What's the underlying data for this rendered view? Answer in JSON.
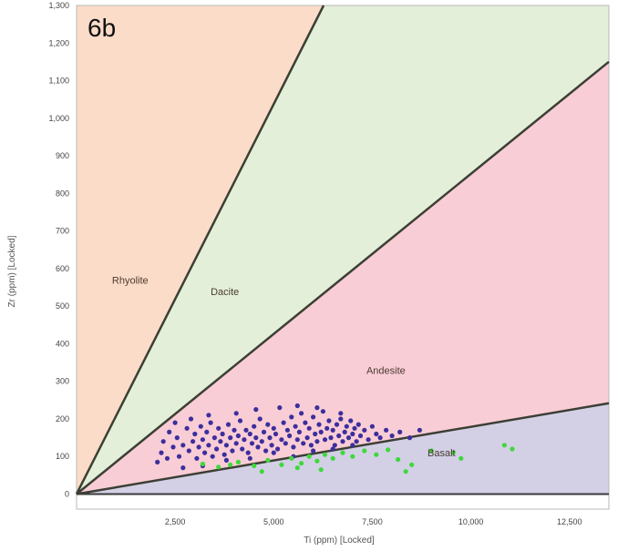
{
  "chart_data": {
    "type": "scatter",
    "panel_label": "6b",
    "xlabel": "Ti (ppm) [Locked]",
    "ylabel": "Zr (ppm) [Locked]",
    "xlim": [
      0,
      13500
    ],
    "ylim": [
      -40,
      1300
    ],
    "xticks": [
      2500,
      5000,
      7500,
      10000,
      12500
    ],
    "xtick_labels": [
      "2,500",
      "5,000",
      "7,500",
      "10,000",
      "12,500"
    ],
    "yticks": [
      0,
      100,
      200,
      300,
      400,
      500,
      600,
      700,
      800,
      900,
      1000,
      1100,
      1200,
      1300
    ],
    "ytick_labels": [
      "0",
      "100",
      "200",
      "300",
      "400",
      "500",
      "600",
      "700",
      "800",
      "900",
      "1,000",
      "1,100",
      "1,200",
      "1,300"
    ],
    "boundaries": [
      {
        "name": "rhyolite-dacite",
        "slope": 0.2075
      },
      {
        "name": "dacite-andesite",
        "slope": 0.0852
      },
      {
        "name": "andesite-basalt",
        "slope": 0.0179
      }
    ],
    "regions": [
      {
        "label": "Rhyolite",
        "color": "#fbdcc8",
        "label_at": [
          900,
          560
        ]
      },
      {
        "label": "Dacite",
        "color": "#e3efd9",
        "label_at": [
          3400,
          530
        ]
      },
      {
        "label": "Andesite",
        "color": "#f9cdd6",
        "label_at": [
          7350,
          320
        ]
      },
      {
        "label": "Basalt",
        "color": "#d3d0e6",
        "label_at": [
          8900,
          100
        ]
      }
    ],
    "series": [
      {
        "color": "#3c2f9c",
        "points": [
          [
            2050,
            85
          ],
          [
            2150,
            110
          ],
          [
            2200,
            140
          ],
          [
            2300,
            95
          ],
          [
            2350,
            165
          ],
          [
            2450,
            125
          ],
          [
            2550,
            150
          ],
          [
            2600,
            100
          ],
          [
            2700,
            130
          ],
          [
            2800,
            175
          ],
          [
            2850,
            115
          ],
          [
            2950,
            140
          ],
          [
            3000,
            160
          ],
          [
            3050,
            95
          ],
          [
            3100,
            125
          ],
          [
            3150,
            180
          ],
          [
            3200,
            145
          ],
          [
            3250,
            110
          ],
          [
            3300,
            165
          ],
          [
            3350,
            130
          ],
          [
            3400,
            190
          ],
          [
            3450,
            100
          ],
          [
            3500,
            150
          ],
          [
            3550,
            120
          ],
          [
            3600,
            175
          ],
          [
            3650,
            140
          ],
          [
            3700,
            160
          ],
          [
            3750,
            105
          ],
          [
            3800,
            130
          ],
          [
            3850,
            185
          ],
          [
            3900,
            150
          ],
          [
            3950,
            115
          ],
          [
            4000,
            170
          ],
          [
            4050,
            135
          ],
          [
            4100,
            155
          ],
          [
            4150,
            195
          ],
          [
            4200,
            120
          ],
          [
            4250,
            145
          ],
          [
            4300,
            170
          ],
          [
            4350,
            110
          ],
          [
            4400,
            160
          ],
          [
            4450,
            135
          ],
          [
            4500,
            180
          ],
          [
            4550,
            150
          ],
          [
            4600,
            125
          ],
          [
            4650,
            200
          ],
          [
            4700,
            140
          ],
          [
            4750,
            165
          ],
          [
            4800,
            115
          ],
          [
            4850,
            185
          ],
          [
            4900,
            150
          ],
          [
            4950,
            130
          ],
          [
            5000,
            175
          ],
          [
            5050,
            160
          ],
          [
            5100,
            120
          ],
          [
            5150,
            230
          ],
          [
            5200,
            145
          ],
          [
            5250,
            190
          ],
          [
            5300,
            135
          ],
          [
            5350,
            170
          ],
          [
            5400,
            155
          ],
          [
            5450,
            205
          ],
          [
            5500,
            125
          ],
          [
            5550,
            180
          ],
          [
            5600,
            145
          ],
          [
            5650,
            165
          ],
          [
            5700,
            215
          ],
          [
            5750,
            135
          ],
          [
            5800,
            190
          ],
          [
            5850,
            150
          ],
          [
            5900,
            175
          ],
          [
            5950,
            130
          ],
          [
            6000,
            205
          ],
          [
            6050,
            160
          ],
          [
            6100,
            140
          ],
          [
            6150,
            185
          ],
          [
            6200,
            165
          ],
          [
            6250,
            220
          ],
          [
            6300,
            145
          ],
          [
            6350,
            175
          ],
          [
            6400,
            195
          ],
          [
            6450,
            150
          ],
          [
            6500,
            170
          ],
          [
            6550,
            130
          ],
          [
            6600,
            185
          ],
          [
            6650,
            155
          ],
          [
            6700,
            200
          ],
          [
            6750,
            140
          ],
          [
            6800,
            165
          ],
          [
            6850,
            180
          ],
          [
            6900,
            150
          ],
          [
            6950,
            195
          ],
          [
            7000,
            160
          ],
          [
            7050,
            175
          ],
          [
            7100,
            140
          ],
          [
            7150,
            185
          ],
          [
            7200,
            155
          ],
          [
            7300,
            170
          ],
          [
            7400,
            145
          ],
          [
            7500,
            180
          ],
          [
            7600,
            160
          ],
          [
            7700,
            150
          ],
          [
            7850,
            170
          ],
          [
            8000,
            155
          ],
          [
            8200,
            165
          ],
          [
            8450,
            150
          ],
          [
            8700,
            170
          ],
          [
            2500,
            190
          ],
          [
            2900,
            200
          ],
          [
            3350,
            210
          ],
          [
            4050,
            215
          ],
          [
            4550,
            225
          ],
          [
            5600,
            235
          ],
          [
            6100,
            230
          ],
          [
            6700,
            215
          ],
          [
            3800,
            90
          ],
          [
            4400,
            95
          ],
          [
            5000,
            110
          ],
          [
            5500,
            100
          ],
          [
            6000,
            115
          ],
          [
            6500,
            120
          ],
          [
            7000,
            130
          ],
          [
            3200,
            75
          ],
          [
            2700,
            70
          ]
        ]
      },
      {
        "color": "#3fd83b",
        "points": [
          [
            3200,
            80
          ],
          [
            3600,
            72
          ],
          [
            4100,
            85
          ],
          [
            4500,
            75
          ],
          [
            4850,
            90
          ],
          [
            5200,
            78
          ],
          [
            5450,
            95
          ],
          [
            5700,
            82
          ],
          [
            5900,
            100
          ],
          [
            6100,
            88
          ],
          [
            6300,
            105
          ],
          [
            6500,
            95
          ],
          [
            6750,
            110
          ],
          [
            7000,
            100
          ],
          [
            7300,
            115
          ],
          [
            7600,
            105
          ],
          [
            7900,
            118
          ],
          [
            8150,
            92
          ],
          [
            8350,
            60
          ],
          [
            8500,
            78
          ],
          [
            9000,
            115
          ],
          [
            9550,
            110
          ],
          [
            9750,
            95
          ],
          [
            10850,
            130
          ],
          [
            11050,
            120
          ],
          [
            6200,
            65
          ],
          [
            5600,
            70
          ],
          [
            4700,
            60
          ],
          [
            3900,
            78
          ]
        ]
      }
    ]
  }
}
